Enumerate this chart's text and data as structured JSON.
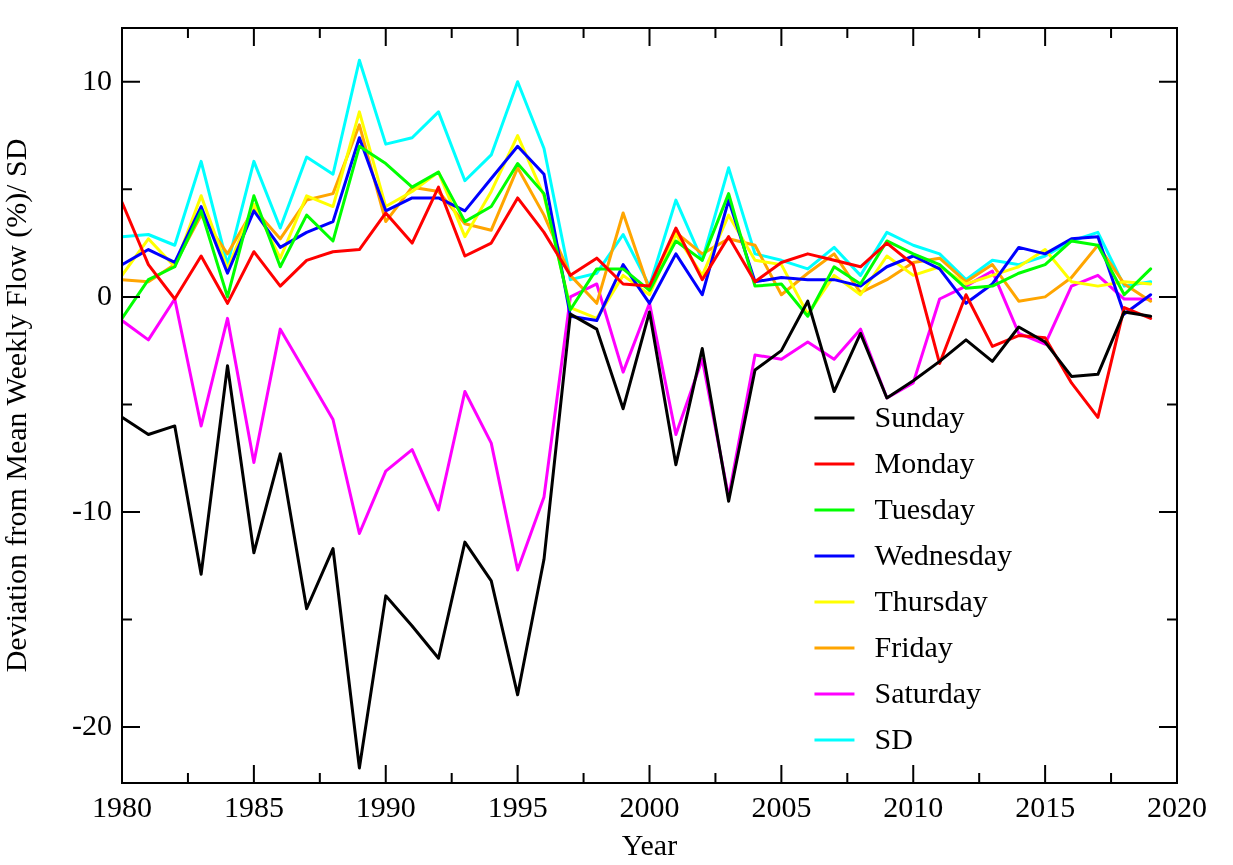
{
  "chart_data": {
    "type": "line",
    "xlabel": "Year",
    "ylabel": "Deviation from Mean Weekly Flow (%)/ SD",
    "x": [
      1980,
      1981,
      1982,
      1983,
      1984,
      1985,
      1986,
      1987,
      1988,
      1989,
      1990,
      1991,
      1992,
      1993,
      1994,
      1995,
      1996,
      1997,
      1998,
      1999,
      2000,
      2001,
      2002,
      2003,
      2004,
      2005,
      2006,
      2007,
      2008,
      2009,
      2010,
      2011,
      2012,
      2013,
      2014,
      2015,
      2016,
      2017,
      2018,
      2019
    ],
    "xlim": [
      1980,
      2020
    ],
    "xticks": [
      1980,
      {
        "value": 1982.5,
        "label": null
      },
      1985,
      {
        "value": 1987.5,
        "label": null
      },
      1990,
      {
        "value": 1992.5,
        "label": null
      },
      1995,
      {
        "value": 1997.5,
        "label": null
      },
      2000,
      {
        "value": 2002.5,
        "label": null
      },
      2005,
      {
        "value": 2007.5,
        "label": null
      },
      2010,
      {
        "value": 2012.5,
        "label": null
      },
      2015,
      {
        "value": 2017.5,
        "label": null
      },
      2020
    ],
    "ylim": [
      -22.6,
      12.5
    ],
    "yticks": [
      -20,
      {
        "value": -15,
        "label": null
      },
      -10,
      {
        "value": -5,
        "label": null
      },
      0,
      {
        "value": 5,
        "label": null
      },
      10
    ],
    "grid": false,
    "legend": "bottom right",
    "marker": "none",
    "line_style": "solid",
    "series": [
      {
        "name": "Sunday",
        "color": "#000000",
        "values": [
          -5.6,
          -6.4,
          -6.0,
          -12.9,
          -3.2,
          -11.9,
          -7.3,
          -14.5,
          -11.7,
          -21.9,
          -13.9,
          -15.3,
          -16.8,
          -11.4,
          -13.2,
          -18.5,
          -12.2,
          -0.8,
          -1.5,
          -5.2,
          -0.7,
          -7.8,
          -2.4,
          -9.5,
          -3.4,
          -2.5,
          -0.2,
          -4.4,
          -1.7,
          -4.7,
          -3.9,
          -3.0,
          -2.0,
          -3.0,
          -1.4,
          -2.1,
          -3.7,
          -3.6,
          -0.7,
          -0.9
        ]
      },
      {
        "name": "Monday",
        "color": "#ff0000",
        "values": [
          4.4,
          1.5,
          -0.1,
          1.9,
          -0.3,
          2.1,
          0.5,
          1.7,
          2.1,
          2.2,
          3.9,
          2.5,
          5.1,
          1.9,
          2.5,
          4.6,
          3.0,
          1.0,
          1.8,
          0.6,
          0.5,
          3.2,
          0.8,
          2.8,
          0.7,
          1.6,
          2.0,
          1.7,
          1.4,
          2.5,
          1.5,
          -3.1,
          0.1,
          -2.3,
          -1.8,
          -1.9,
          -4.0,
          -5.6,
          -0.5,
          -1.0
        ]
      },
      {
        "name": "Tuesday",
        "color": "#00ff00",
        "values": [
          -1.0,
          0.8,
          1.4,
          4.0,
          0.0,
          4.7,
          1.4,
          3.8,
          2.6,
          7.0,
          6.2,
          5.1,
          5.8,
          3.5,
          4.2,
          6.2,
          4.8,
          -0.6,
          1.3,
          1.3,
          0.3,
          2.6,
          1.7,
          4.8,
          0.5,
          0.6,
          -0.9,
          1.4,
          0.6,
          2.6,
          2.0,
          1.5,
          0.4,
          0.5,
          1.1,
          1.5,
          2.6,
          2.4,
          0.1,
          1.3
        ]
      },
      {
        "name": "Wednesday",
        "color": "#0000ff",
        "values": [
          1.5,
          2.2,
          1.6,
          4.2,
          1.1,
          4.0,
          2.3,
          3.0,
          3.5,
          7.4,
          4.0,
          4.6,
          4.6,
          4.0,
          5.5,
          7.0,
          5.7,
          -0.9,
          -1.1,
          1.5,
          -0.3,
          2.0,
          0.1,
          4.5,
          0.7,
          0.9,
          0.8,
          0.8,
          0.5,
          1.4,
          1.9,
          1.3,
          -0.3,
          0.6,
          2.3,
          2.0,
          2.7,
          2.8,
          -0.8,
          0.1
        ]
      },
      {
        "name": "Thursday",
        "color": "#ffff00",
        "values": [
          1.0,
          2.7,
          1.4,
          4.7,
          1.3,
          4.3,
          1.8,
          4.7,
          4.2,
          8.6,
          4.2,
          4.9,
          5.8,
          2.8,
          4.9,
          7.5,
          4.7,
          -0.5,
          -1.0,
          1.0,
          0.1,
          2.9,
          1.0,
          3.8,
          1.7,
          1.5,
          -0.8,
          1.0,
          0.1,
          1.9,
          1.0,
          1.4,
          0.6,
          1.0,
          1.4,
          2.2,
          0.7,
          0.5,
          0.7,
          0.6
        ]
      },
      {
        "name": "Friday",
        "color": "#ffa500",
        "values": [
          0.8,
          0.7,
          1.5,
          3.8,
          2.0,
          4.1,
          2.7,
          4.5,
          4.8,
          8.0,
          3.5,
          5.1,
          4.9,
          3.4,
          3.1,
          6.0,
          3.8,
          1.0,
          -0.3,
          3.9,
          0.3,
          3.0,
          2.0,
          2.7,
          2.4,
          0.1,
          1.1,
          2.0,
          0.2,
          0.8,
          1.6,
          1.8,
          0.7,
          1.5,
          -0.2,
          0.0,
          0.9,
          2.4,
          0.6,
          -0.2
        ]
      },
      {
        "name": "Saturday",
        "color": "#ff00ff",
        "values": [
          -1.1,
          -2.0,
          -0.1,
          -6.0,
          -1.0,
          -7.7,
          -1.5,
          -3.6,
          -5.7,
          -11.0,
          -8.1,
          -7.1,
          -9.9,
          -4.4,
          -6.8,
          -12.7,
          -9.3,
          0.0,
          0.6,
          -3.5,
          -0.3,
          -6.4,
          -2.9,
          -9.3,
          -2.7,
          -2.9,
          -2.1,
          -2.9,
          -1.5,
          -4.7,
          -4.0,
          -0.1,
          0.5,
          1.2,
          -1.7,
          -2.2,
          0.5,
          1.0,
          -0.1,
          -0.1
        ]
      },
      {
        "name": "SD",
        "color": "#00ffff",
        "values": [
          2.8,
          2.9,
          2.4,
          6.3,
          1.5,
          6.3,
          3.2,
          6.5,
          5.7,
          11.0,
          7.1,
          7.4,
          8.6,
          5.4,
          6.6,
          10.0,
          6.9,
          0.8,
          1.1,
          2.9,
          0.5,
          4.5,
          1.7,
          6.0,
          2.0,
          1.7,
          1.3,
          2.3,
          1.0,
          3.0,
          2.4,
          2.0,
          0.8,
          1.7,
          1.5,
          1.9,
          2.6,
          3.0,
          0.5,
          0.7
        ]
      }
    ]
  }
}
